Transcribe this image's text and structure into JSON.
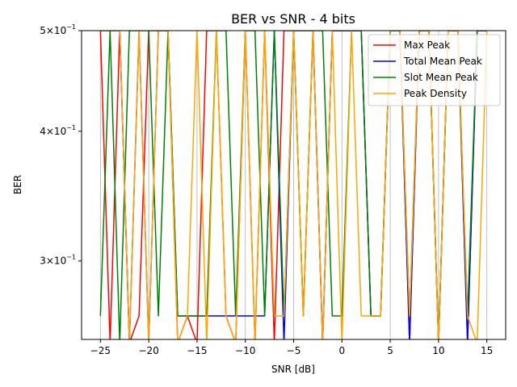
{
  "chart_data": {
    "type": "line",
    "title": "BER vs SNR - 4 bits",
    "xlabel": "SNR [dB]",
    "ylabel": "BER",
    "xlim": [
      -26.95,
      16.95
    ],
    "ylim": [
      0.2521,
      0.5
    ],
    "yscale": "log",
    "grid": "vertical",
    "legend_position": "top-right",
    "xticks": [
      {
        "value": -25,
        "label": "−25"
      },
      {
        "value": -20,
        "label": "−20"
      },
      {
        "value": -15,
        "label": "−15"
      },
      {
        "value": -10,
        "label": "−10"
      },
      {
        "value": -5,
        "label": "−5"
      },
      {
        "value": 0,
        "label": "0"
      },
      {
        "value": 5,
        "label": "5"
      },
      {
        "value": 10,
        "label": "10"
      },
      {
        "value": 15,
        "label": "15"
      }
    ],
    "yticks": [
      {
        "value": 0.5,
        "base": "5",
        "exp": "−1"
      },
      {
        "value": 0.4,
        "base": "4",
        "exp": "−1"
      },
      {
        "value": 0.3,
        "base": "3",
        "exp": "−1"
      }
    ],
    "x": [
      -25,
      -24,
      -23,
      -22,
      -21,
      -20,
      -19,
      -18,
      -17,
      -16,
      -15,
      -14,
      -13,
      -12,
      -11,
      -10,
      -9,
      -8,
      -7,
      -6,
      -5,
      -4,
      -3,
      -2,
      -1,
      0,
      1,
      2,
      3,
      4,
      5,
      6,
      7,
      8,
      9,
      10,
      11,
      12,
      13,
      14,
      15
    ],
    "series": [
      {
        "name": "Max Peak",
        "color": "#ff0000",
        "values": [
          0.5,
          0.25,
          0.5,
          0.25,
          0.2656,
          0.5,
          0.5,
          0.5,
          0.25,
          0.2656,
          0.25,
          0.5,
          0.5,
          0.2656,
          0.25,
          0.5,
          0.25,
          0.5,
          0.25,
          0.5,
          0.5,
          0.2656,
          0.5,
          0.25,
          0.5,
          0.5,
          0.5,
          0.5,
          0.2656,
          0.2656,
          0.5,
          0.5,
          0.25,
          0.5,
          0.5,
          0.25,
          0.5,
          0.5,
          0.25,
          0.5,
          0.5
        ]
      },
      {
        "name": "Total Mean Peak",
        "color": "#0000ff",
        "values": [
          0.5,
          0.5,
          0.5,
          0.25,
          0.5,
          0.25,
          0.5,
          0.5,
          0.2656,
          0.2656,
          0.2656,
          0.2656,
          0.2656,
          0.2656,
          0.2656,
          0.2656,
          0.2656,
          0.2656,
          0.5,
          0.25,
          0.5,
          0.5,
          0.5,
          0.25,
          0.5,
          0.5,
          0.5,
          0.5,
          0.2656,
          0.2656,
          0.5,
          0.5,
          0.25,
          0.5,
          0.5,
          0.25,
          0.5,
          0.5,
          0.25,
          0.5,
          0.5
        ]
      },
      {
        "name": "Slot Mean Peak",
        "color": "#008000",
        "values": [
          0.2656,
          0.5,
          0.25,
          0.5,
          0.5,
          0.5,
          0.2656,
          0.5,
          0.2656,
          0.2656,
          0.2656,
          0.2656,
          0.5,
          0.5,
          0.2656,
          0.5,
          0.5,
          0.2656,
          0.5,
          0.2656,
          0.5,
          0.2656,
          0.5,
          0.5,
          0.2656,
          0.2656,
          0.5,
          0.5,
          0.2656,
          0.2656,
          0.5,
          0.5,
          0.2656,
          0.5,
          0.5,
          0.25,
          0.5,
          0.5,
          0.2656,
          0.5,
          0.5
        ]
      },
      {
        "name": "Peak Density",
        "color": "#ffa500",
        "values": [
          0.5,
          0.5,
          0.5,
          0.25,
          0.5,
          0.25,
          0.5,
          0.5,
          0.25,
          0.2656,
          0.5,
          0.25,
          0.5,
          0.2656,
          0.25,
          0.5,
          0.25,
          0.5,
          0.2656,
          0.2656,
          0.5,
          0.2656,
          0.5,
          0.25,
          0.5,
          0.25,
          0.5,
          0.2656,
          0.2656,
          0.2656,
          0.5,
          0.5,
          0.2656,
          0.5,
          0.5,
          0.25,
          0.5,
          0.5,
          0.2656,
          0.25,
          0.5
        ]
      }
    ]
  }
}
